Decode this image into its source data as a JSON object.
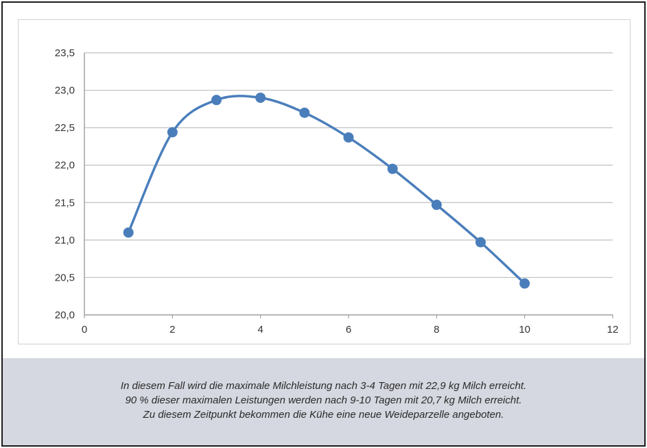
{
  "chart_data": {
    "type": "line",
    "smooth": true,
    "markers": true,
    "grid": true,
    "x": [
      1,
      2,
      3,
      4,
      5,
      6,
      7,
      8,
      9,
      10
    ],
    "series": [
      {
        "values": [
          21.1,
          22.44,
          22.87,
          22.9,
          22.7,
          22.37,
          21.95,
          21.47,
          20.97,
          20.42
        ]
      }
    ],
    "xlim": [
      0,
      12
    ],
    "ylim": [
      20.0,
      23.5
    ],
    "x_ticks": [
      "0",
      "2",
      "4",
      "6",
      "8",
      "10",
      "12"
    ],
    "y_ticks": [
      "20,0",
      "20,5",
      "21,0",
      "21,5",
      "22,0",
      "22,5",
      "23,0",
      "23,5"
    ],
    "title": "",
    "xlabel": "",
    "ylabel": "",
    "line_color": "#4a7ebb",
    "marker_color": "#4a7ebb",
    "grid_color": "#bfbfbf"
  },
  "caption": {
    "line1": "In diesem Fall wird die maximale Milchleistung nach 3-4 Tagen mit 22,9 kg Milch erreicht.",
    "line2": "90 % dieser maximalen Leistungen werden nach 9-10 Tagen mit 20,7 kg Milch erreicht.",
    "line3": "Zu diesem Zeitpunkt bekommen die Kühe eine neue Weideparzelle angeboten."
  },
  "colors": {
    "caption_background": "#d5d8e0",
    "frame_border": "#1a1a1a"
  }
}
